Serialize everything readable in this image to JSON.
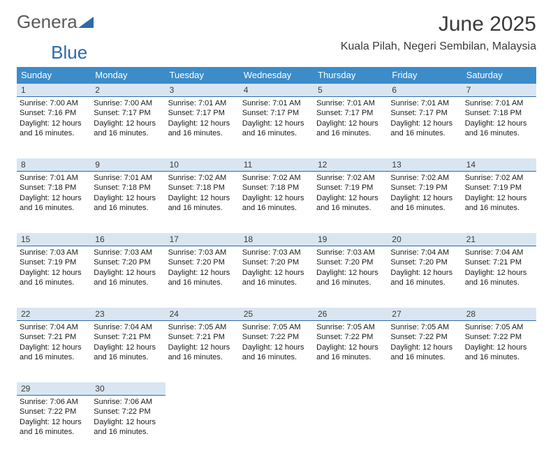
{
  "brand": {
    "word1": "Genera",
    "word2": "Blue"
  },
  "title": "June 2025",
  "location": "Kuala Pilah, Negeri Sembilan, Malaysia",
  "colors": {
    "header_bg": "#3b8cc9",
    "header_fg": "#ffffff",
    "daynum_bg": "#d9e6f2",
    "daynum_border": "#2d6aa8",
    "brand_gray": "#5a5a5a",
    "brand_blue": "#2d6aa8",
    "text": "#1a1a1a"
  },
  "dow": [
    "Sunday",
    "Monday",
    "Tuesday",
    "Wednesday",
    "Thursday",
    "Friday",
    "Saturday"
  ],
  "weeks": [
    [
      {
        "n": "1",
        "sr": "7:00 AM",
        "ss": "7:16 PM",
        "dl": "12 hours and 16 minutes."
      },
      {
        "n": "2",
        "sr": "7:00 AM",
        "ss": "7:17 PM",
        "dl": "12 hours and 16 minutes."
      },
      {
        "n": "3",
        "sr": "7:01 AM",
        "ss": "7:17 PM",
        "dl": "12 hours and 16 minutes."
      },
      {
        "n": "4",
        "sr": "7:01 AM",
        "ss": "7:17 PM",
        "dl": "12 hours and 16 minutes."
      },
      {
        "n": "5",
        "sr": "7:01 AM",
        "ss": "7:17 PM",
        "dl": "12 hours and 16 minutes."
      },
      {
        "n": "6",
        "sr": "7:01 AM",
        "ss": "7:17 PM",
        "dl": "12 hours and 16 minutes."
      },
      {
        "n": "7",
        "sr": "7:01 AM",
        "ss": "7:18 PM",
        "dl": "12 hours and 16 minutes."
      }
    ],
    [
      {
        "n": "8",
        "sr": "7:01 AM",
        "ss": "7:18 PM",
        "dl": "12 hours and 16 minutes."
      },
      {
        "n": "9",
        "sr": "7:01 AM",
        "ss": "7:18 PM",
        "dl": "12 hours and 16 minutes."
      },
      {
        "n": "10",
        "sr": "7:02 AM",
        "ss": "7:18 PM",
        "dl": "12 hours and 16 minutes."
      },
      {
        "n": "11",
        "sr": "7:02 AM",
        "ss": "7:18 PM",
        "dl": "12 hours and 16 minutes."
      },
      {
        "n": "12",
        "sr": "7:02 AM",
        "ss": "7:19 PM",
        "dl": "12 hours and 16 minutes."
      },
      {
        "n": "13",
        "sr": "7:02 AM",
        "ss": "7:19 PM",
        "dl": "12 hours and 16 minutes."
      },
      {
        "n": "14",
        "sr": "7:02 AM",
        "ss": "7:19 PM",
        "dl": "12 hours and 16 minutes."
      }
    ],
    [
      {
        "n": "15",
        "sr": "7:03 AM",
        "ss": "7:19 PM",
        "dl": "12 hours and 16 minutes."
      },
      {
        "n": "16",
        "sr": "7:03 AM",
        "ss": "7:20 PM",
        "dl": "12 hours and 16 minutes."
      },
      {
        "n": "17",
        "sr": "7:03 AM",
        "ss": "7:20 PM",
        "dl": "12 hours and 16 minutes."
      },
      {
        "n": "18",
        "sr": "7:03 AM",
        "ss": "7:20 PM",
        "dl": "12 hours and 16 minutes."
      },
      {
        "n": "19",
        "sr": "7:03 AM",
        "ss": "7:20 PM",
        "dl": "12 hours and 16 minutes."
      },
      {
        "n": "20",
        "sr": "7:04 AM",
        "ss": "7:20 PM",
        "dl": "12 hours and 16 minutes."
      },
      {
        "n": "21",
        "sr": "7:04 AM",
        "ss": "7:21 PM",
        "dl": "12 hours and 16 minutes."
      }
    ],
    [
      {
        "n": "22",
        "sr": "7:04 AM",
        "ss": "7:21 PM",
        "dl": "12 hours and 16 minutes."
      },
      {
        "n": "23",
        "sr": "7:04 AM",
        "ss": "7:21 PM",
        "dl": "12 hours and 16 minutes."
      },
      {
        "n": "24",
        "sr": "7:05 AM",
        "ss": "7:21 PM",
        "dl": "12 hours and 16 minutes."
      },
      {
        "n": "25",
        "sr": "7:05 AM",
        "ss": "7:22 PM",
        "dl": "12 hours and 16 minutes."
      },
      {
        "n": "26",
        "sr": "7:05 AM",
        "ss": "7:22 PM",
        "dl": "12 hours and 16 minutes."
      },
      {
        "n": "27",
        "sr": "7:05 AM",
        "ss": "7:22 PM",
        "dl": "12 hours and 16 minutes."
      },
      {
        "n": "28",
        "sr": "7:05 AM",
        "ss": "7:22 PM",
        "dl": "12 hours and 16 minutes."
      }
    ],
    [
      {
        "n": "29",
        "sr": "7:06 AM",
        "ss": "7:22 PM",
        "dl": "12 hours and 16 minutes."
      },
      {
        "n": "30",
        "sr": "7:06 AM",
        "ss": "7:22 PM",
        "dl": "12 hours and 16 minutes."
      },
      null,
      null,
      null,
      null,
      null
    ]
  ],
  "labels": {
    "sunrise": "Sunrise: ",
    "sunset": "Sunset: ",
    "daylight": "Daylight: "
  }
}
